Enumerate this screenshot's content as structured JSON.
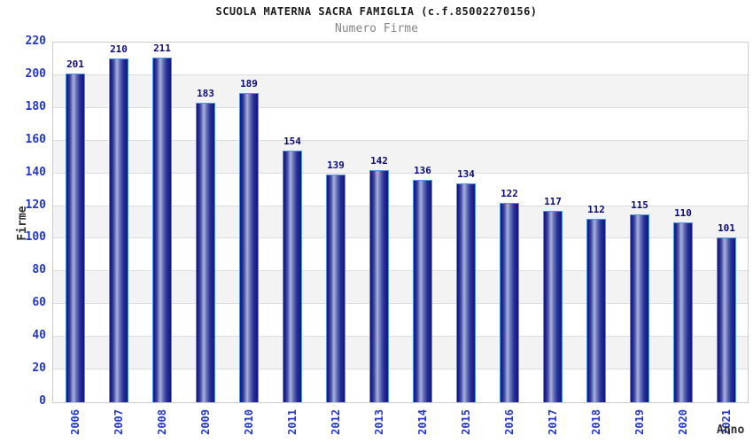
{
  "chart_data": {
    "type": "bar",
    "title": "SCUOLA MATERNA SACRA FAMIGLIA (c.f.85002270156)",
    "subtitle": "Numero Firme",
    "xlabel": "Anno",
    "ylabel": "Firme",
    "categories": [
      "2006",
      "2007",
      "2008",
      "2009",
      "2010",
      "2011",
      "2012",
      "2013",
      "2014",
      "2015",
      "2016",
      "2017",
      "2018",
      "2019",
      "2020",
      "2021"
    ],
    "values": [
      201,
      210,
      211,
      183,
      189,
      154,
      139,
      142,
      136,
      134,
      122,
      117,
      112,
      115,
      110,
      101
    ],
    "ylim": [
      0,
      220
    ],
    "ytick_step": 20,
    "yticks": [
      0,
      20,
      40,
      60,
      80,
      100,
      120,
      140,
      160,
      180,
      200,
      220
    ],
    "grid": true,
    "alternating_bands": true,
    "legend_position": "none",
    "bar_value_labels": true,
    "colors": {
      "title_text": "#1b1b1b",
      "subtitle_text": "#858585",
      "axis_tick_text": "#2236cc",
      "value_label_text": "#0a0a78",
      "axis_title_text": "#2f2f2f",
      "bar_dark": "#151a82",
      "bar_highlight": "#aab3dd",
      "bar_border": "#4b96e8",
      "plot_border": "#cccccc",
      "gridline": "#dcdcdc",
      "band_alt": "#f3f3f3",
      "band_main": "#ffffff"
    }
  }
}
